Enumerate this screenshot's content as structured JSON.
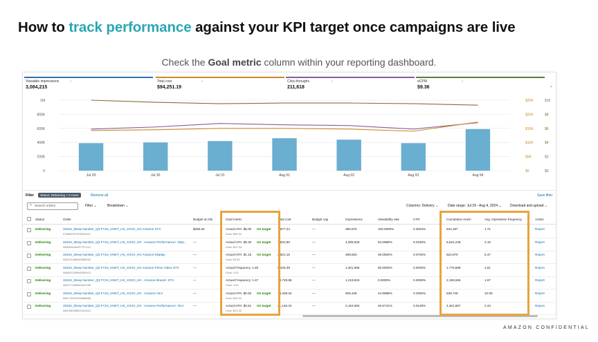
{
  "slide": {
    "title_pre": "How to ",
    "title_highlight": "track performance",
    "title_post": " against your KPI target once campaigns are live",
    "subtitle_pre": "Check the ",
    "subtitle_bold": "Goal metric",
    "subtitle_post": " column within your reporting dashboard.",
    "footer": "AMAZON CONFIDENTIAL"
  },
  "colors": {
    "accent": "#2aa6b2",
    "highlight_box": "#e8a33b",
    "status_green": "#1d8102",
    "link_blue": "#0b6aa8",
    "bar_blue": "#6aaed0"
  },
  "metrics": [
    {
      "label": "Viewable impressions",
      "value": "3,084,215",
      "color": "#2f6fb0"
    },
    {
      "label": "Total cost",
      "value": "$94,251.19",
      "color": "#c9892a"
    },
    {
      "label": "Click-throughs",
      "value": "211,618",
      "color": "#8a5c9c"
    },
    {
      "label": "eCPM",
      "value": "$9.36",
      "color": "#5a7a3a"
    }
  ],
  "chart_data": {
    "type": "bar",
    "categories": [
      "Jul 29",
      "Jul 30",
      "Jul 31",
      "Aug 01",
      "Aug 02",
      "Aug 03",
      "Aug 04"
    ],
    "left_ticks": [
      "0",
      "200K",
      "400K",
      "600K",
      "800K",
      "1M"
    ],
    "right_ticks_a": [
      "$0",
      "$5K",
      "$10K",
      "$15K",
      "$20K",
      "$25K"
    ],
    "right_ticks_b": [
      "$0",
      "$2",
      "$4",
      "$6",
      "$8",
      "$10"
    ],
    "ylim": [
      0,
      1000000
    ],
    "series": [
      {
        "type": "bar",
        "values": [
          390000,
          400000,
          420000,
          460000,
          440000,
          390000,
          590000
        ]
      },
      {
        "type": "line",
        "color": "#8a6a3a",
        "values": [
          1000000,
          970000,
          950000,
          960000,
          960000,
          950000,
          930000
        ]
      },
      {
        "type": "line",
        "color": "#8a5c9c",
        "values": [
          590000,
          620000,
          670000,
          650000,
          640000,
          590000,
          680000
        ]
      },
      {
        "type": "line",
        "color": "#c9892a",
        "values": [
          570000,
          580000,
          600000,
          600000,
          590000,
          560000,
          690000
        ]
      }
    ]
  },
  "filter": {
    "label": "Filter",
    "chip": "Status: Delivering × 5 more",
    "remove": "Remove all",
    "save": "Save filter"
  },
  "toolbar": {
    "search_placeholder": "Search orders",
    "filter": "Filter",
    "breakdown": "Breakdown",
    "columns": "Columns: Delivery",
    "date_range": "Date range: Jul 29 - Aug 4, 2024",
    "download": "Download and upload"
  },
  "table": {
    "headers": [
      "Status",
      "Order",
      "Budget at risk",
      "Goal metric",
      "Total cost",
      "Budget cap",
      "Impressions",
      "Viewability rate",
      "CTR",
      "Cumulative reach",
      "Avg. impression frequency",
      "Action"
    ],
    "rows": [
      {
        "status": "Delivering",
        "order": "33434_Sleep Number_Q3 FY24_HNKT_HX_XXXX_HX Amazon STV",
        "order_id": "578842097305904921",
        "budget_risk": "$326.62",
        "goal_line": "Actual CPA: $5.00",
        "goal_sub": "Goal: $50.00",
        "goal_status": "On target",
        "total_cost": "7,677.24",
        "budget_cap": "—",
        "impressions": "390,875",
        "viewability": "100.0000%",
        "ctr": "0.3004%",
        "reach": "634,187",
        "freq": "1.71",
        "action": "Report"
      },
      {
        "status": "Delivering",
        "order": "33434_Sleep Number_Q3 FY24_HNKT_HX_XXXX_HX - Amazon Performance+ Disp...",
        "order_id": "586994848187797113",
        "budget_risk": "—",
        "goal_line": "Actual CPA: $5.30",
        "goal_sub": "Goal: $23.33",
        "goal_status": "On target",
        "total_cost": "7,622.90",
        "budget_cap": "—",
        "impressions": "4,006,929",
        "viewability": "54.0989%",
        "ctr": "0.0160%",
        "reach": "6,624,246",
        "freq": "2.10",
        "action": "Report"
      },
      {
        "status": "Delivering",
        "order": "33434_Sleep Number_Q3 FY24_HNKT_HX_XXXX_HX Amazon Display",
        "order_id": "586214488490888053",
        "budget_risk": "—",
        "goal_line": "Actual CPA: $1.15",
        "goal_sub": "Goal: $4.50",
        "goal_status": "On target",
        "total_cost": "2,521.15",
        "budget_cap": "—",
        "impressions": "489,820",
        "viewability": "46.0500%",
        "ctr": "0.0702%",
        "reach": "522,970",
        "freq": "5.47",
        "action": "Report"
      },
      {
        "status": "Delivering",
        "order": "33434_Sleep Number_Q3 FY24_HNKT_HX_XXXX_HX Amazon Prime Video STV",
        "order_id": "586601290548390413",
        "budget_risk": "—",
        "goal_line": "Actual Frequency: 1.50",
        "goal_sub": "Goal: 3.00",
        "goal_status": "",
        "total_cost": "9,426.38",
        "budget_cap": "—",
        "impressions": "1,301,966",
        "viewability": "50.0000%",
        "ctr": "0.0000%",
        "reach": "1,779,589",
        "freq": "1.61",
        "action": "Report"
      },
      {
        "status": "Delivering",
        "order": "33434_Sleep Number_Q3 FY24_HNKT_HX_XXXX_HX - Amazon Brand+ STV",
        "order_id": "586717165080641936",
        "budget_risk": "—",
        "goal_line": "Actual Frequency: 1.47",
        "goal_sub": "Goal: 3.00",
        "goal_status": "",
        "total_cost": "18,728.86",
        "budget_cap": "—",
        "impressions": "1,219,815",
        "viewability": "0.0000%",
        "ctr": "0.0000%",
        "reach": "2,195,565",
        "freq": "1.57",
        "action": "Report"
      },
      {
        "status": "Delivering",
        "order": "33434_Sleep Number_Q3 FY24_HNKT_HX_XXXX_HX - Amazon OLV",
        "order_id": "586773091326886858",
        "budget_risk": "—",
        "goal_line": "Actual CPA: $0.92",
        "goal_sub": "Goal: $20.00",
        "goal_status": "On target",
        "total_cost": "18,329.34",
        "budget_cap": "—",
        "impressions": "905,346",
        "viewability": "44.9989%",
        "ctr": "0.3392%",
        "reach": "538,745",
        "freq": "10.90",
        "action": "Report"
      },
      {
        "status": "Delivering",
        "order": "33434_Sleep Number_Q3 FY24_HNKT_HX_XXXX_HX - Amazon Performance+ OLV",
        "order_id": "586785098892231810",
        "budget_risk": "—",
        "goal_line": "Actual CPA: $0.51",
        "goal_sub": "Goal: $23.33",
        "goal_status": "On target",
        "total_cost": "21,146.10",
        "budget_cap": "—",
        "impressions": "2,164,594",
        "viewability": "46.6741%",
        "ctr": "0.0125%",
        "reach": "4,361,867",
        "freq": "2.44",
        "action": "Report"
      }
    ]
  }
}
